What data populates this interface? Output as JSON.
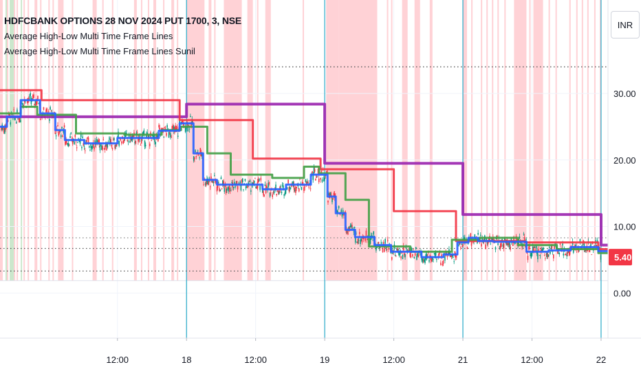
{
  "chart_data": {
    "type": "line",
    "title": "HDFCBANK OPTIONS 28 NOV 2024 PUT 1700, 3, NSE",
    "indicators": [
      "Average High-Low Multi Time Frame Lines",
      "Average High-Low Multi Time Frame Lines Sunil"
    ],
    "currency": "INR",
    "y_ticks": [
      {
        "value": 30.0,
        "label": "30.00"
      },
      {
        "value": 20.0,
        "label": "20.00"
      },
      {
        "value": 10.0,
        "label": "10.00"
      },
      {
        "value": 0.0,
        "label": "0.00"
      }
    ],
    "ylim": [
      -5,
      40
    ],
    "x_ticks": [
      {
        "x": 0.5,
        "label": "12:00"
      },
      {
        "x": 1.0,
        "label": "18"
      },
      {
        "x": 1.5,
        "label": "12:00"
      },
      {
        "x": 2.0,
        "label": "19"
      },
      {
        "x": 2.5,
        "label": "12:00"
      },
      {
        "x": 3.0,
        "label": "21"
      },
      {
        "x": 3.5,
        "label": "12:00"
      },
      {
        "x": 4.0,
        "label": "22"
      }
    ],
    "xlim": [
      -0.35,
      4.05
    ],
    "day_separators": [
      1.0,
      2.0,
      3.0,
      4.0
    ],
    "last_price": {
      "value": 5.4,
      "label": "5.40"
    },
    "reference_lines": [
      {
        "value": 34.0,
        "style": "dotted",
        "color": "#555555"
      },
      {
        "value": 6.7,
        "style": "dotted",
        "color": "#555555"
      },
      {
        "value": 3.3,
        "style": "dotted",
        "color": "#555555"
      },
      {
        "value": 8.3,
        "style": "dotted",
        "color": "#888888"
      }
    ],
    "highlight_bands": {
      "red": [
        [
          -0.35,
          -0.33
        ],
        [
          -0.3,
          -0.29
        ],
        [
          -0.25,
          -0.24
        ],
        [
          -0.23,
          -0.22
        ],
        [
          -0.18,
          -0.17
        ],
        [
          -0.15,
          -0.14
        ],
        [
          -0.1,
          -0.08
        ],
        [
          -0.06,
          -0.05
        ],
        [
          0.0,
          0.01
        ],
        [
          0.03,
          0.04
        ],
        [
          0.07,
          0.11
        ],
        [
          0.17,
          0.18
        ],
        [
          0.32,
          0.35
        ],
        [
          0.39,
          0.4
        ],
        [
          0.46,
          0.47
        ],
        [
          0.62,
          0.64
        ],
        [
          0.67,
          0.68
        ],
        [
          0.72,
          0.73
        ],
        [
          0.76,
          0.78
        ],
        [
          0.83,
          0.84
        ],
        [
          0.89,
          0.91
        ],
        [
          0.93,
          0.94
        ],
        [
          1.0,
          1.13
        ],
        [
          1.16,
          1.18
        ],
        [
          1.2,
          1.21
        ],
        [
          1.27,
          1.4
        ],
        [
          1.44,
          1.48
        ],
        [
          1.51,
          1.52
        ],
        [
          1.57,
          1.61
        ],
        [
          1.84,
          1.85
        ],
        [
          2.01,
          2.1
        ],
        [
          2.1,
          2.38
        ],
        [
          2.45,
          2.46
        ],
        [
          2.48,
          2.49
        ],
        [
          2.56,
          2.6
        ],
        [
          2.65,
          2.69
        ],
        [
          2.76,
          2.78
        ],
        [
          3.0,
          3.03
        ],
        [
          3.06,
          3.07
        ],
        [
          3.13,
          3.14
        ],
        [
          3.17,
          3.18
        ],
        [
          3.21,
          3.22
        ],
        [
          3.25,
          3.26
        ],
        [
          3.3,
          3.31
        ],
        [
          3.37,
          3.46
        ],
        [
          3.48,
          3.49
        ],
        [
          3.51,
          3.58
        ],
        [
          3.62,
          3.63
        ],
        [
          3.67,
          3.68
        ],
        [
          3.77,
          3.78
        ],
        [
          3.82,
          3.83
        ],
        [
          3.86,
          3.87
        ],
        [
          3.9,
          3.91
        ],
        [
          3.95,
          3.96
        ],
        [
          3.99,
          4.0
        ]
      ],
      "green": [
        [
          -0.31,
          -0.3
        ],
        [
          -0.28,
          -0.25
        ],
        [
          -0.2,
          -0.19
        ]
      ]
    },
    "series": [
      {
        "color": "#9c27b0",
        "width": 4,
        "points": [
          [
            -0.35,
            26.5
          ],
          [
            1.0,
            26.5
          ],
          [
            1.0,
            28.4
          ],
          [
            2.0,
            28.4
          ],
          [
            2.0,
            19.5
          ],
          [
            3.0,
            19.5
          ],
          [
            3.0,
            11.8
          ],
          [
            4.0,
            11.8
          ],
          [
            4.0,
            7.2
          ],
          [
            4.05,
            7.2
          ]
        ]
      },
      {
        "color": "#f23645",
        "width": 3,
        "points": [
          [
            -0.35,
            30.5
          ],
          [
            -0.05,
            30.5
          ],
          [
            -0.05,
            29.0
          ],
          [
            0.95,
            29.0
          ],
          [
            0.95,
            26.0
          ],
          [
            1.48,
            26.0
          ],
          [
            1.48,
            20.2
          ],
          [
            1.97,
            20.2
          ],
          [
            1.97,
            18.6
          ],
          [
            2.5,
            18.6
          ],
          [
            2.5,
            12.3
          ],
          [
            2.95,
            12.3
          ],
          [
            2.95,
            7.8
          ],
          [
            3.45,
            7.8
          ],
          [
            3.45,
            7.6
          ],
          [
            3.98,
            7.6
          ],
          [
            3.98,
            6.6
          ],
          [
            4.05,
            6.6
          ]
        ]
      },
      {
        "color": "#43a047",
        "width": 3,
        "points": [
          [
            -0.35,
            27.0
          ],
          [
            -0.2,
            27.0
          ],
          [
            -0.2,
            28.0
          ],
          [
            -0.08,
            28.0
          ],
          [
            -0.08,
            26.8
          ],
          [
            0.2,
            26.8
          ],
          [
            0.2,
            24.0
          ],
          [
            0.55,
            24.0
          ],
          [
            0.55,
            23.8
          ],
          [
            0.82,
            23.8
          ],
          [
            0.82,
            24.5
          ],
          [
            0.96,
            24.5
          ],
          [
            0.96,
            25.0
          ],
          [
            1.15,
            25.0
          ],
          [
            1.15,
            21.0
          ],
          [
            1.32,
            21.0
          ],
          [
            1.32,
            17.8
          ],
          [
            1.62,
            17.8
          ],
          [
            1.62,
            17.3
          ],
          [
            1.85,
            17.3
          ],
          [
            1.85,
            19.0
          ],
          [
            1.96,
            19.0
          ],
          [
            1.96,
            18.0
          ],
          [
            2.15,
            18.0
          ],
          [
            2.15,
            14.0
          ],
          [
            2.32,
            14.0
          ],
          [
            2.32,
            7.0
          ],
          [
            2.62,
            7.0
          ],
          [
            2.62,
            6.2
          ],
          [
            2.92,
            6.2
          ],
          [
            2.92,
            8.0
          ],
          [
            3.12,
            8.0
          ],
          [
            3.12,
            8.3
          ],
          [
            3.4,
            8.3
          ],
          [
            3.4,
            7.2
          ],
          [
            3.68,
            7.2
          ],
          [
            3.68,
            6.6
          ],
          [
            3.98,
            6.6
          ],
          [
            3.98,
            6.0
          ],
          [
            4.05,
            6.0
          ]
        ]
      },
      {
        "color": "#2962ff",
        "width": 3,
        "points": [
          [
            -0.35,
            25.0
          ],
          [
            -0.3,
            25.0
          ],
          [
            -0.3,
            26.5
          ],
          [
            -0.2,
            26.5
          ],
          [
            -0.2,
            29.0
          ],
          [
            -0.06,
            29.0
          ],
          [
            -0.06,
            27.0
          ],
          [
            0.05,
            27.0
          ],
          [
            0.05,
            24.5
          ],
          [
            0.12,
            24.5
          ],
          [
            0.12,
            23.0
          ],
          [
            0.26,
            23.0
          ],
          [
            0.26,
            22.5
          ],
          [
            0.5,
            22.5
          ],
          [
            0.5,
            23.3
          ],
          [
            0.8,
            23.3
          ],
          [
            0.8,
            24.4
          ],
          [
            0.95,
            24.4
          ],
          [
            0.95,
            25.5
          ],
          [
            1.05,
            25.5
          ],
          [
            1.05,
            21.0
          ],
          [
            1.12,
            21.0
          ],
          [
            1.12,
            17.0
          ],
          [
            1.22,
            17.0
          ],
          [
            1.22,
            16.3
          ],
          [
            1.55,
            16.3
          ],
          [
            1.55,
            15.6
          ],
          [
            1.72,
            15.6
          ],
          [
            1.72,
            16.3
          ],
          [
            1.9,
            16.3
          ],
          [
            1.9,
            17.8
          ],
          [
            2.02,
            17.8
          ],
          [
            2.02,
            14.5
          ],
          [
            2.08,
            14.5
          ],
          [
            2.08,
            12.0
          ],
          [
            2.15,
            12.0
          ],
          [
            2.15,
            9.5
          ],
          [
            2.22,
            9.5
          ],
          [
            2.22,
            8.4
          ],
          [
            2.36,
            8.4
          ],
          [
            2.36,
            7.2
          ],
          [
            2.48,
            7.2
          ],
          [
            2.48,
            6.2
          ],
          [
            2.7,
            6.2
          ],
          [
            2.7,
            5.4
          ],
          [
            2.86,
            5.4
          ],
          [
            2.86,
            5.8
          ],
          [
            2.96,
            5.8
          ],
          [
            2.96,
            7.6
          ],
          [
            3.04,
            7.6
          ],
          [
            3.04,
            8.3
          ],
          [
            3.11,
            8.3
          ],
          [
            3.11,
            7.8
          ],
          [
            3.22,
            7.8
          ],
          [
            3.22,
            7.7
          ],
          [
            3.46,
            7.7
          ],
          [
            3.46,
            6.2
          ],
          [
            3.62,
            6.2
          ],
          [
            3.62,
            6.4
          ],
          [
            3.78,
            6.4
          ],
          [
            3.78,
            6.9
          ],
          [
            3.98,
            6.9
          ],
          [
            3.98,
            6.3
          ],
          [
            4.05,
            6.3
          ]
        ]
      }
    ]
  }
}
